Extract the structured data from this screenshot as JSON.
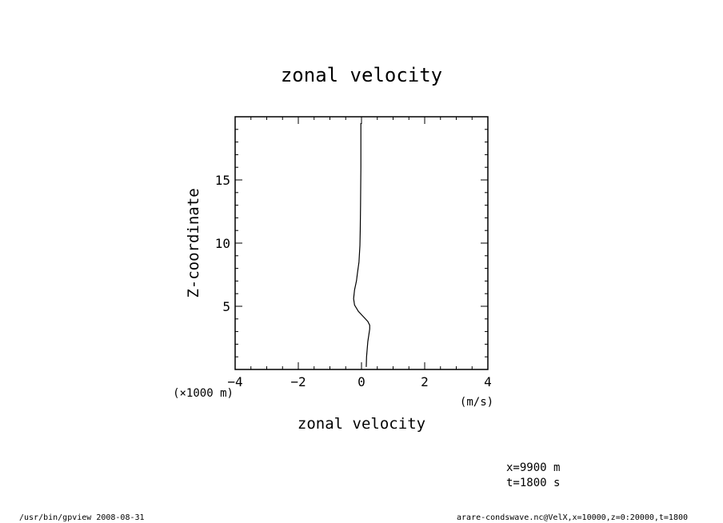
{
  "chart_data": {
    "type": "line",
    "title": "zonal velocity",
    "xlabel": "zonal velocity",
    "ylabel": "Z-coordinate",
    "x_unit": "(m/s)",
    "y_unit": "(×1000 m)",
    "xlim": [
      -4,
      4
    ],
    "ylim": [
      0,
      20
    ],
    "xticks": [
      -4,
      -2,
      0,
      2,
      4
    ],
    "yticks": [
      5,
      10,
      15
    ],
    "grid": false,
    "series": [
      {
        "x": [
          0.15,
          0.16,
          0.2,
          0.26,
          0.26,
          0.2,
          0.05,
          -0.1,
          -0.22,
          -0.25,
          -0.22,
          -0.16,
          -0.13,
          -0.08,
          -0.05,
          -0.04,
          -0.03,
          -0.02,
          -0.02
        ],
        "y": [
          0.2,
          1.0,
          2.2,
          3.2,
          3.5,
          3.8,
          4.2,
          4.6,
          5.1,
          5.6,
          6.3,
          7.0,
          7.6,
          8.5,
          9.8,
          11.0,
          13.0,
          16.0,
          19.5
        ]
      }
    ]
  },
  "annotations": {
    "line1": "x=9900 m",
    "line2": "t=1800 s"
  },
  "footer": {
    "left": "/usr/bin/gpview   2008-08-31",
    "right": "arare-condswave.nc@VelX,x=10000,z=0:20000,t=1800"
  }
}
